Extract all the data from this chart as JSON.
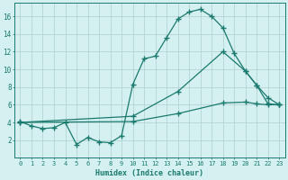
{
  "xlabel": "Humidex (Indice chaleur)",
  "bg_color": "#d4f0f0",
  "line_color": "#1a7a6e",
  "grid_color": "#b0cece",
  "xlim": [
    -0.5,
    23.5
  ],
  "ylim": [
    0,
    17.5
  ],
  "xticks": [
    0,
    1,
    2,
    3,
    4,
    5,
    6,
    7,
    8,
    9,
    10,
    11,
    12,
    13,
    14,
    15,
    16,
    17,
    18,
    19,
    20,
    21,
    22,
    23
  ],
  "yticks": [
    2,
    4,
    6,
    8,
    10,
    12,
    14,
    16
  ],
  "series1_x": [
    0,
    1,
    2,
    3,
    4,
    5,
    6,
    7,
    8,
    9,
    10,
    11,
    12,
    13,
    14,
    15,
    16,
    17,
    18,
    19,
    20,
    21,
    22,
    23
  ],
  "series1_y": [
    4.1,
    3.6,
    3.3,
    3.4,
    4.0,
    1.5,
    2.3,
    1.8,
    1.7,
    2.5,
    8.3,
    11.2,
    11.5,
    13.6,
    15.7,
    16.5,
    16.8,
    16.0,
    14.7,
    11.8,
    9.8,
    8.2,
    6.1,
    6.0
  ],
  "series2_x": [
    0,
    10,
    14,
    18,
    20,
    21,
    22,
    23
  ],
  "series2_y": [
    4.0,
    4.7,
    7.5,
    12.0,
    9.8,
    8.2,
    6.8,
    6.0
  ],
  "series3_x": [
    0,
    10,
    14,
    18,
    20,
    21,
    22,
    23
  ],
  "series3_y": [
    4.0,
    4.1,
    5.0,
    6.2,
    6.3,
    6.1,
    6.0,
    6.0
  ]
}
